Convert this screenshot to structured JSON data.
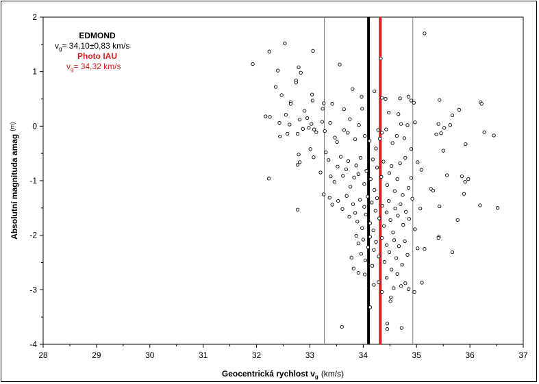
{
  "chart_data": {
    "type": "scatter",
    "xlabel": "Geocentrická rychlost v",
    "xlabel_sub": "g",
    "xlabel_unit": "(km/s)",
    "ylabel": "Absolutní magnituda amag",
    "ylabel_unit": "(m)",
    "xlim": [
      28,
      37
    ],
    "ylim": [
      -4,
      2
    ],
    "x_ticks": [
      "28",
      "29",
      "30",
      "31",
      "32",
      "33",
      "34",
      "35",
      "36",
      "37"
    ],
    "y_ticks": [
      "2",
      "1",
      "0",
      "-1",
      "-2",
      "-3",
      "-4"
    ],
    "grid": false,
    "annotations": {
      "edmond_title": "EDMOND",
      "edmond_v": "v",
      "edmond_sub": "g",
      "edmond_value": "= 34,10±0,83  km/s",
      "iau_title": "Photo IAU",
      "iau_v": "v",
      "iau_sub": "g",
      "iau_value": "= 34,32 km/s"
    },
    "lines": [
      {
        "x": 33.27,
        "color": "#808080",
        "width": 1
      },
      {
        "x": 34.93,
        "color": "#808080",
        "width": 1
      },
      {
        "x": 34.1,
        "color": "#000000",
        "width": 4
      },
      {
        "x": 34.32,
        "color": "#d42020",
        "width": 4
      }
    ],
    "colors": {
      "edmond": "#000000",
      "iau": "#d42020"
    },
    "points": [
      [
        31.93,
        1.14
      ],
      [
        32.24,
        1.37
      ],
      [
        32.53,
        1.52
      ],
      [
        33.06,
        1.38
      ],
      [
        32.4,
        1.02
      ],
      [
        32.79,
        1.08
      ],
      [
        32.83,
        0.98
      ],
      [
        32.74,
        0.84
      ],
      [
        32.74,
        0.8
      ],
      [
        33.56,
        1.13
      ],
      [
        34.33,
        1.24
      ],
      [
        35.15,
        1.7
      ],
      [
        32.36,
        0.72
      ],
      [
        32.47,
        0.57
      ],
      [
        32.64,
        0.44
      ],
      [
        32.64,
        0.41
      ],
      [
        33.04,
        0.58
      ],
      [
        32.9,
        0.28
      ],
      [
        33.05,
        0.47
      ],
      [
        33.24,
        0.32
      ],
      [
        33.26,
        0.42
      ],
      [
        33.42,
        0.41
      ],
      [
        33.64,
        0.31
      ],
      [
        33.8,
        0.68
      ],
      [
        33.97,
        0.54
      ],
      [
        34.21,
        0.64
      ],
      [
        34.69,
        0.51
      ],
      [
        34.35,
        0.52
      ],
      [
        34.42,
        0.5
      ],
      [
        34.48,
        0.25
      ],
      [
        34.85,
        0.54
      ],
      [
        34.9,
        0.47
      ],
      [
        34.95,
        0.43
      ],
      [
        35.43,
        0.48
      ],
      [
        35.67,
        0.2
      ],
      [
        35.8,
        0.3
      ],
      [
        36.2,
        0.44
      ],
      [
        36.22,
        0.41
      ],
      [
        32.17,
        0.18
      ],
      [
        32.25,
        0.17
      ],
      [
        32.55,
        0.21
      ],
      [
        32.43,
        0.06
      ],
      [
        32.62,
        0.03
      ],
      [
        32.44,
        -0.19
      ],
      [
        32.58,
        -0.14
      ],
      [
        32.77,
        -0.14
      ],
      [
        32.81,
        0.12
      ],
      [
        32.87,
        -0.05
      ],
      [
        32.95,
        0.15
      ],
      [
        32.98,
        -0.03
      ],
      [
        33.03,
        0.04
      ],
      [
        33.08,
        -0.06
      ],
      [
        33.12,
        -0.11
      ],
      [
        33.23,
        0.08
      ],
      [
        33.28,
        -0.09
      ],
      [
        33.38,
        0.06
      ],
      [
        33.47,
        -0.21
      ],
      [
        33.51,
        -0.29
      ],
      [
        33.64,
        -0.07
      ],
      [
        33.71,
        -0.12
      ],
      [
        33.75,
        0.13
      ],
      [
        33.85,
        -0.24
      ],
      [
        33.92,
        0.02
      ],
      [
        33.98,
        0.32
      ],
      [
        34.03,
        -0.18
      ],
      [
        34.12,
        -0.27
      ],
      [
        34.24,
        -0.41
      ],
      [
        34.28,
        -0.07
      ],
      [
        34.31,
        -0.23
      ],
      [
        34.35,
        -0.12
      ],
      [
        34.43,
        -0.06
      ],
      [
        34.55,
        -0.31
      ],
      [
        34.63,
        -0.18
      ],
      [
        34.66,
        0.22
      ],
      [
        34.71,
        0.04
      ],
      [
        34.77,
        -0.22
      ],
      [
        34.83,
        0.02
      ],
      [
        34.9,
        -0.42
      ],
      [
        34.97,
        0.07
      ],
      [
        35.37,
        -0.15
      ],
      [
        35.41,
        0.04
      ],
      [
        35.46,
        -0.13
      ],
      [
        35.52,
        -0.03
      ],
      [
        35.63,
        0.02
      ],
      [
        35.5,
        -0.45
      ],
      [
        35.92,
        -0.33
      ],
      [
        36.27,
        -0.11
      ],
      [
        36.45,
        -0.17
      ],
      [
        32.23,
        -0.96
      ],
      [
        32.77,
        -0.71
      ],
      [
        32.79,
        -0.52
      ],
      [
        32.81,
        -0.66
      ],
      [
        33.01,
        -0.42
      ],
      [
        33.07,
        -0.57
      ],
      [
        33.2,
        -0.85
      ],
      [
        33.3,
        -0.48
      ],
      [
        33.35,
        -0.62
      ],
      [
        33.39,
        -0.92
      ],
      [
        33.46,
        -1.02
      ],
      [
        33.52,
        -0.74
      ],
      [
        33.58,
        -0.56
      ],
      [
        33.62,
        -0.91
      ],
      [
        33.68,
        -0.79
      ],
      [
        33.72,
        -0.64
      ],
      [
        33.76,
        -1.11
      ],
      [
        33.83,
        -0.94
      ],
      [
        33.87,
        -0.72
      ],
      [
        33.91,
        -0.88
      ],
      [
        33.95,
        -0.58
      ],
      [
        34.02,
        -1.06
      ],
      [
        34.06,
        -0.82
      ],
      [
        34.14,
        -0.97
      ],
      [
        34.18,
        -0.61
      ],
      [
        34.21,
        -1.17
      ],
      [
        34.26,
        -0.76
      ],
      [
        34.34,
        -0.93
      ],
      [
        34.38,
        -0.65
      ],
      [
        34.45,
        -1.08
      ],
      [
        34.49,
        -0.86
      ],
      [
        34.53,
        -0.73
      ],
      [
        34.59,
        -1.19
      ],
      [
        34.64,
        -0.97
      ],
      [
        34.69,
        -0.68
      ],
      [
        34.74,
        -1.26
      ],
      [
        34.79,
        -0.58
      ],
      [
        34.85,
        -1.13
      ],
      [
        34.9,
        -0.95
      ],
      [
        35.02,
        -0.66
      ],
      [
        35.09,
        -0.8
      ],
      [
        35.27,
        -1.15
      ],
      [
        35.31,
        -1.18
      ],
      [
        35.57,
        -0.9
      ],
      [
        35.85,
        -0.92
      ],
      [
        35.91,
        -1.02
      ],
      [
        35.97,
        -0.97
      ],
      [
        35.89,
        -1.24
      ],
      [
        35.77,
        -1.72
      ],
      [
        32.77,
        -1.53
      ],
      [
        33.26,
        -1.25
      ],
      [
        33.37,
        -1.31
      ],
      [
        33.42,
        -1.44
      ],
      [
        33.53,
        -1.37
      ],
      [
        33.61,
        -1.52
      ],
      [
        33.69,
        -1.28
      ],
      [
        33.74,
        -1.66
      ],
      [
        33.81,
        -1.43
      ],
      [
        33.85,
        -1.59
      ],
      [
        33.89,
        -1.75
      ],
      [
        33.94,
        -1.35
      ],
      [
        33.98,
        -1.87
      ],
      [
        34.02,
        -1.48
      ],
      [
        34.05,
        -1.62
      ],
      [
        34.08,
        -1.29
      ],
      [
        34.13,
        -1.78
      ],
      [
        34.16,
        -1.4
      ],
      [
        34.19,
        -1.91
      ],
      [
        34.23,
        -1.55
      ],
      [
        34.26,
        -1.32
      ],
      [
        34.3,
        -1.69
      ],
      [
        34.36,
        -1.46
      ],
      [
        34.39,
        -1.83
      ],
      [
        34.44,
        -1.58
      ],
      [
        34.48,
        -1.37
      ],
      [
        34.51,
        -1.72
      ],
      [
        34.56,
        -1.95
      ],
      [
        34.6,
        -1.51
      ],
      [
        34.65,
        -1.64
      ],
      [
        34.7,
        -1.43
      ],
      [
        34.75,
        -1.81
      ],
      [
        34.8,
        -1.57
      ],
      [
        34.86,
        -1.7
      ],
      [
        34.92,
        -1.33
      ],
      [
        34.97,
        -1.89
      ],
      [
        35.07,
        -1.51
      ],
      [
        35.43,
        -1.47
      ],
      [
        36.19,
        -1.45
      ],
      [
        36.52,
        -1.5
      ],
      [
        33.87,
        -2.01
      ],
      [
        33.91,
        -2.15
      ],
      [
        33.96,
        -2.34
      ],
      [
        34.0,
        -2.08
      ],
      [
        34.04,
        -2.46
      ],
      [
        34.09,
        -2.22
      ],
      [
        34.13,
        -2.03
      ],
      [
        34.17,
        -2.56
      ],
      [
        34.2,
        -2.27
      ],
      [
        34.24,
        -2.12
      ],
      [
        34.29,
        -2.39
      ],
      [
        34.35,
        -2.05
      ],
      [
        34.4,
        -2.49
      ],
      [
        34.44,
        -2.18
      ],
      [
        34.49,
        -2.31
      ],
      [
        34.53,
        -2.63
      ],
      [
        34.58,
        -2.09
      ],
      [
        34.62,
        -2.42
      ],
      [
        34.67,
        -2.2
      ],
      [
        34.73,
        -2.54
      ],
      [
        34.78,
        -2.11
      ],
      [
        34.83,
        -2.36
      ],
      [
        35.02,
        -2.24
      ],
      [
        35.15,
        -2.25
      ],
      [
        35.42,
        -2.03
      ],
      [
        35.41,
        -2.05
      ],
      [
        35.67,
        -2.31
      ],
      [
        33.78,
        -2.41
      ],
      [
        33.82,
        -2.61
      ],
      [
        33.91,
        -2.69
      ],
      [
        34.03,
        -2.72
      ],
      [
        34.2,
        -2.91
      ],
      [
        34.29,
        -2.86
      ],
      [
        34.35,
        -3.04
      ],
      [
        34.44,
        -2.78
      ],
      [
        34.52,
        -3.14
      ],
      [
        34.57,
        -2.97
      ],
      [
        34.64,
        -2.71
      ],
      [
        34.71,
        -2.93
      ],
      [
        34.79,
        -2.88
      ],
      [
        34.85,
        -2.99
      ],
      [
        34.96,
        -3.04
      ],
      [
        35.1,
        -2.87
      ],
      [
        34.13,
        -3.32
      ],
      [
        34.51,
        -3.21
      ],
      [
        33.6,
        -3.68
      ],
      [
        34.45,
        -3.62
      ],
      [
        34.45,
        -3.72
      ],
      [
        34.72,
        -3.7
      ]
    ]
  }
}
